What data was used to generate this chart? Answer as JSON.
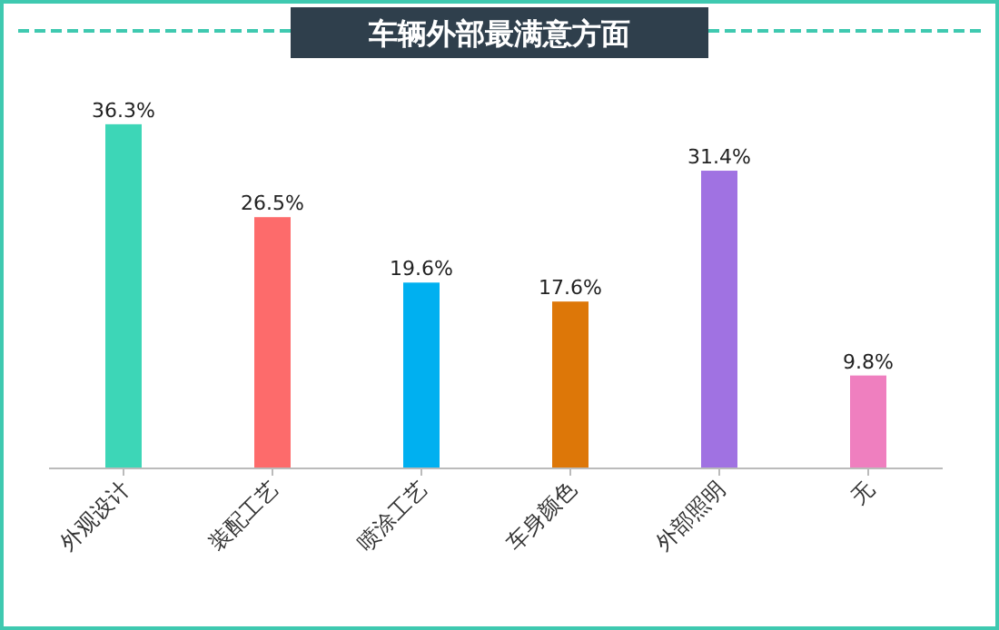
{
  "chart_data": {
    "type": "bar",
    "title": "车辆外部最满意方面",
    "categories": [
      "外观设计",
      "装配工艺",
      "喷涂工艺",
      "车身颜色",
      "外部照明",
      "无"
    ],
    "values": [
      36.3,
      26.5,
      19.6,
      17.6,
      31.4,
      9.8
    ],
    "colors": [
      "#3dd6b7",
      "#fd6b6b",
      "#00b0f0",
      "#dd7708",
      "#a072e2",
      "#ef7fbf"
    ],
    "value_labels": [
      "36.3%",
      "26.5%",
      "19.6%",
      "17.6%",
      "31.4%",
      "9.8%"
    ]
  }
}
